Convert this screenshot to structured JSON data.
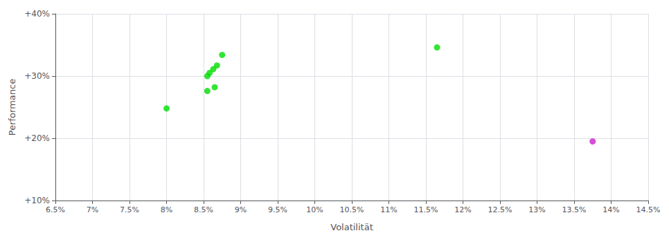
{
  "chart_data": {
    "type": "scatter",
    "xlabel": "Volatilität",
    "ylabel": "Performance",
    "xlim": [
      0.065,
      0.145
    ],
    "ylim": [
      0.1,
      0.4
    ],
    "xticks": [
      {
        "value": 0.065,
        "label": "6.5%"
      },
      {
        "value": 0.07,
        "label": "7%"
      },
      {
        "value": 0.075,
        "label": "7.5%"
      },
      {
        "value": 0.08,
        "label": "8%"
      },
      {
        "value": 0.085,
        "label": "8.5%"
      },
      {
        "value": 0.09,
        "label": "9%"
      },
      {
        "value": 0.095,
        "label": "9.5%"
      },
      {
        "value": 0.1,
        "label": "10%"
      },
      {
        "value": 0.105,
        "label": "10.5%"
      },
      {
        "value": 0.11,
        "label": "11%"
      },
      {
        "value": 0.115,
        "label": "11.5%"
      },
      {
        "value": 0.12,
        "label": "12%"
      },
      {
        "value": 0.125,
        "label": "12.5%"
      },
      {
        "value": 0.13,
        "label": "13%"
      },
      {
        "value": 0.135,
        "label": "13.5%"
      },
      {
        "value": 0.14,
        "label": "14%"
      },
      {
        "value": 0.145,
        "label": "14.5%"
      }
    ],
    "yticks": [
      {
        "value": 0.1,
        "label": "+10%"
      },
      {
        "value": 0.2,
        "label": "+20%"
      },
      {
        "value": 0.3,
        "label": "+30%"
      },
      {
        "value": 0.4,
        "label": "+40%"
      }
    ],
    "grid": true,
    "series": [
      {
        "color": "#00dd00",
        "x": [
          0.0875,
          0.0868,
          0.0863,
          0.0858,
          0.0855,
          0.0865,
          0.0855,
          0.08,
          0.1165
        ],
        "values": [
          0.334,
          0.317,
          0.311,
          0.305,
          0.3,
          0.282,
          0.276,
          0.248,
          0.346
        ]
      },
      {
        "color": "#cc22cc",
        "x": [
          0.1375
        ],
        "values": [
          0.195
        ]
      }
    ]
  }
}
